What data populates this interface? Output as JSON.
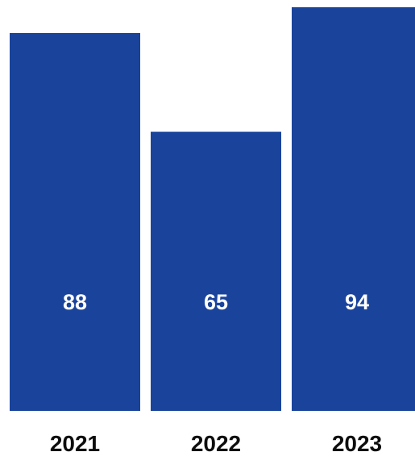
{
  "chart_data": {
    "type": "bar",
    "categories": [
      "2021",
      "2022",
      "2023"
    ],
    "values": [
      88,
      65,
      94
    ],
    "title": "",
    "xlabel": "",
    "ylabel": "",
    "ylim": [
      0,
      94
    ],
    "grid": false,
    "data_labels": [
      "88",
      "65",
      "94"
    ],
    "colors": {
      "bar": "#1a449c",
      "data_label": "#ffffff",
      "category_label": "#0d0d0d",
      "background": "#ffffff"
    }
  }
}
